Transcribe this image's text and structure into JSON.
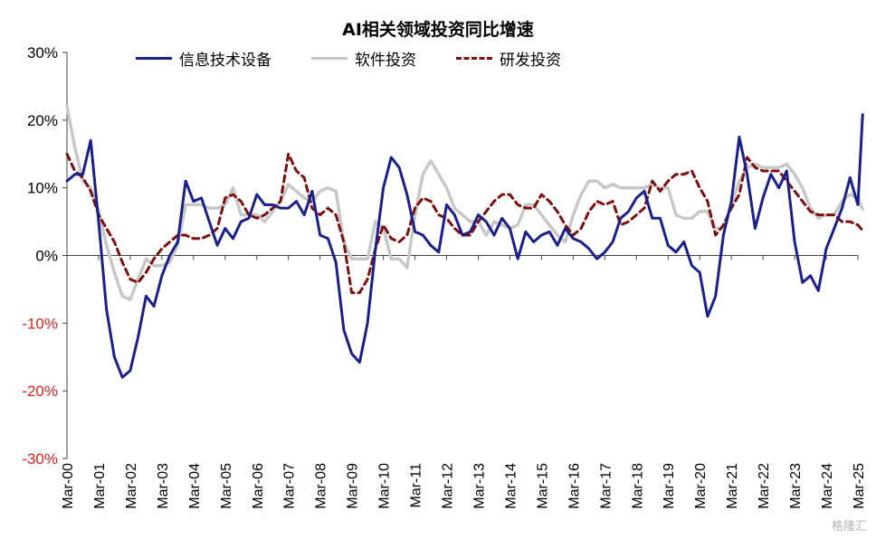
{
  "colors": {
    "series_info": "#1a1f8c",
    "series_software": "#c8c8c8",
    "series_rd": "#7b1010",
    "tick_negative": "#e02020",
    "tick_positive": "#000000",
    "axis": "#444444"
  },
  "watermark": "格隆汇",
  "chart_data": {
    "type": "line",
    "title": "AI相关领域投资同比增速",
    "ylim": [
      -30,
      30
    ],
    "yticks": [
      -30,
      -20,
      -10,
      0,
      10,
      20,
      30
    ],
    "ytick_labels": [
      "-30%",
      "-20%",
      "-10%",
      "0%",
      "10%",
      "20%",
      "30%"
    ],
    "xlim": [
      2000.0,
      2025.0
    ],
    "x_tick_labels": [
      "Mar-00",
      "Mar-01",
      "Mar-02",
      "Mar-03",
      "Mar-04",
      "Mar-05",
      "Mar-06",
      "Mar-07",
      "Mar-08",
      "Mar-09",
      "Mar-10",
      "Mar-11",
      "Mar-12",
      "Mar-13",
      "Mar-14",
      "Mar-15",
      "Mar-16",
      "Mar-17",
      "Mar-18",
      "Mar-19",
      "Mar-20",
      "Mar-21",
      "Mar-22",
      "Mar-23",
      "Mar-24",
      "Mar-25"
    ],
    "legend_position": "top",
    "series": [
      {
        "name": "信息技术设备",
        "style": "solid",
        "points": [
          [
            2000.0,
            11
          ],
          [
            2000.25,
            12
          ],
          [
            2000.5,
            12
          ],
          [
            2000.75,
            17
          ],
          [
            2001.0,
            5
          ],
          [
            2001.25,
            -8
          ],
          [
            2001.5,
            -15
          ],
          [
            2001.75,
            -18
          ],
          [
            2002.0,
            -17
          ],
          [
            2002.25,
            -12
          ],
          [
            2002.5,
            -6
          ],
          [
            2002.75,
            -7.5
          ],
          [
            2003.0,
            -3
          ],
          [
            2003.25,
            0
          ],
          [
            2003.5,
            2
          ],
          [
            2003.75,
            11
          ],
          [
            2004.0,
            8
          ],
          [
            2004.25,
            8.5
          ],
          [
            2004.5,
            5
          ],
          [
            2004.75,
            1.5
          ],
          [
            2005.0,
            4
          ],
          [
            2005.25,
            2.5
          ],
          [
            2005.5,
            5
          ],
          [
            2005.75,
            5.5
          ],
          [
            2006.0,
            9
          ],
          [
            2006.25,
            7.5
          ],
          [
            2006.5,
            7.5
          ],
          [
            2006.75,
            7
          ],
          [
            2007.0,
            7
          ],
          [
            2007.25,
            8
          ],
          [
            2007.5,
            6
          ],
          [
            2007.75,
            9.5
          ],
          [
            2008.0,
            3
          ],
          [
            2008.25,
            2.5
          ],
          [
            2008.5,
            -1
          ],
          [
            2008.75,
            -11
          ],
          [
            2009.0,
            -14.5
          ],
          [
            2009.25,
            -15.8
          ],
          [
            2009.5,
            -10
          ],
          [
            2009.75,
            1
          ],
          [
            2010.0,
            10
          ],
          [
            2010.25,
            14.5
          ],
          [
            2010.5,
            13
          ],
          [
            2010.75,
            9
          ],
          [
            2011.0,
            3.5
          ],
          [
            2011.25,
            3
          ],
          [
            2011.5,
            1.5
          ],
          [
            2011.75,
            0.5
          ],
          [
            2012.0,
            7.5
          ],
          [
            2012.25,
            6
          ],
          [
            2012.5,
            3
          ],
          [
            2012.75,
            3.5
          ],
          [
            2013.0,
            6
          ],
          [
            2013.25,
            5
          ],
          [
            2013.5,
            3
          ],
          [
            2013.75,
            5.5
          ],
          [
            2014.0,
            4
          ],
          [
            2014.25,
            -0.5
          ],
          [
            2014.5,
            3.5
          ],
          [
            2014.75,
            2
          ],
          [
            2015.0,
            3
          ],
          [
            2015.25,
            3.5
          ],
          [
            2015.5,
            1.5
          ],
          [
            2015.75,
            4
          ],
          [
            2016.0,
            2.5
          ],
          [
            2016.25,
            2
          ],
          [
            2016.5,
            1
          ],
          [
            2016.75,
            -0.5
          ],
          [
            2017.0,
            0.5
          ],
          [
            2017.25,
            2
          ],
          [
            2017.5,
            5.5
          ],
          [
            2017.75,
            6.5
          ],
          [
            2018.0,
            8.5
          ],
          [
            2018.25,
            9.5
          ],
          [
            2018.5,
            5.5
          ],
          [
            2018.75,
            5.5
          ],
          [
            2019.0,
            1.5
          ],
          [
            2019.25,
            0.5
          ],
          [
            2019.5,
            2
          ],
          [
            2019.75,
            -1.5
          ],
          [
            2020.0,
            -2.5
          ],
          [
            2020.25,
            -9
          ],
          [
            2020.5,
            -6
          ],
          [
            2020.75,
            3
          ],
          [
            2021.0,
            8
          ],
          [
            2021.25,
            17.5
          ],
          [
            2021.5,
            12
          ],
          [
            2021.75,
            4
          ],
          [
            2022.0,
            8.5
          ],
          [
            2022.25,
            12
          ],
          [
            2022.5,
            10
          ],
          [
            2022.75,
            12.5
          ],
          [
            2023.0,
            2
          ],
          [
            2023.25,
            -4
          ],
          [
            2023.5,
            -3
          ],
          [
            2023.75,
            -5.2
          ],
          [
            2024.0,
            1
          ],
          [
            2024.25,
            4
          ],
          [
            2024.5,
            7
          ],
          [
            2024.75,
            11.5
          ],
          [
            2025.0,
            7.5
          ],
          [
            2025.15,
            20.8
          ]
        ]
      },
      {
        "name": "软件投资",
        "style": "solid",
        "points": [
          [
            2000.0,
            22
          ],
          [
            2000.25,
            16
          ],
          [
            2000.5,
            11
          ],
          [
            2000.75,
            10
          ],
          [
            2001.0,
            6.5
          ],
          [
            2001.25,
            1.5
          ],
          [
            2001.5,
            -2.5
          ],
          [
            2001.75,
            -6
          ],
          [
            2002.0,
            -6.5
          ],
          [
            2002.25,
            -3.5
          ],
          [
            2002.5,
            -0.5
          ],
          [
            2002.75,
            -1.5
          ],
          [
            2003.0,
            -1.5
          ],
          [
            2003.25,
            -1
          ],
          [
            2003.5,
            1.5
          ],
          [
            2003.75,
            7.5
          ],
          [
            2004.0,
            7.5
          ],
          [
            2004.25,
            7.5
          ],
          [
            2004.5,
            7
          ],
          [
            2004.75,
            7
          ],
          [
            2005.0,
            7.5
          ],
          [
            2005.25,
            10
          ],
          [
            2005.5,
            6
          ],
          [
            2005.75,
            6
          ],
          [
            2006.0,
            6
          ],
          [
            2006.25,
            5
          ],
          [
            2006.5,
            6.5
          ],
          [
            2006.75,
            8
          ],
          [
            2007.0,
            10.5
          ],
          [
            2007.25,
            9.5
          ],
          [
            2007.5,
            8.5
          ],
          [
            2007.75,
            8
          ],
          [
            2008.0,
            9.5
          ],
          [
            2008.25,
            10
          ],
          [
            2008.5,
            9.5
          ],
          [
            2008.75,
            2
          ],
          [
            2009.0,
            -0.5
          ],
          [
            2009.25,
            -0.5
          ],
          [
            2009.5,
            -0.5
          ],
          [
            2009.75,
            5
          ],
          [
            2010.0,
            4
          ],
          [
            2010.25,
            -0.5
          ],
          [
            2010.5,
            -0.5
          ],
          [
            2010.75,
            -1.8
          ],
          [
            2011.0,
            6
          ],
          [
            2011.25,
            12
          ],
          [
            2011.5,
            14
          ],
          [
            2011.75,
            12
          ],
          [
            2012.0,
            10
          ],
          [
            2012.25,
            7
          ],
          [
            2012.5,
            6
          ],
          [
            2012.75,
            5
          ],
          [
            2013.0,
            5
          ],
          [
            2013.25,
            3
          ],
          [
            2013.5,
            5
          ],
          [
            2013.75,
            4.5
          ],
          [
            2014.0,
            4
          ],
          [
            2014.25,
            4.5
          ],
          [
            2014.5,
            7.5
          ],
          [
            2014.75,
            7.5
          ],
          [
            2015.0,
            6
          ],
          [
            2015.25,
            4.5
          ],
          [
            2015.5,
            3
          ],
          [
            2015.75,
            2
          ],
          [
            2016.0,
            6
          ],
          [
            2016.25,
            9
          ],
          [
            2016.5,
            11
          ],
          [
            2016.75,
            11
          ],
          [
            2017.0,
            10
          ],
          [
            2017.25,
            10.5
          ],
          [
            2017.5,
            10
          ],
          [
            2017.75,
            10
          ],
          [
            2018.0,
            10
          ],
          [
            2018.25,
            10
          ],
          [
            2018.5,
            10.5
          ],
          [
            2018.75,
            10
          ],
          [
            2019.0,
            10
          ],
          [
            2019.25,
            6
          ],
          [
            2019.5,
            5.5
          ],
          [
            2019.75,
            5.5
          ],
          [
            2020.0,
            6.5
          ],
          [
            2020.25,
            6.5
          ],
          [
            2020.5,
            4
          ],
          [
            2020.75,
            4
          ],
          [
            2021.0,
            7.5
          ],
          [
            2021.25,
            11
          ],
          [
            2021.5,
            13
          ],
          [
            2021.75,
            13.5
          ],
          [
            2022.0,
            13
          ],
          [
            2022.25,
            13
          ],
          [
            2022.5,
            13
          ],
          [
            2022.75,
            13.5
          ],
          [
            2023.0,
            12
          ],
          [
            2023.25,
            10
          ],
          [
            2023.5,
            7
          ],
          [
            2023.75,
            5.5
          ],
          [
            2024.0,
            6
          ],
          [
            2024.25,
            6
          ],
          [
            2024.5,
            8
          ],
          [
            2024.75,
            9
          ],
          [
            2025.0,
            8.5
          ],
          [
            2025.15,
            6.8
          ]
        ]
      },
      {
        "name": "研发投资",
        "style": "dashed",
        "points": [
          [
            2000.0,
            15
          ],
          [
            2000.25,
            12.5
          ],
          [
            2000.5,
            11.5
          ],
          [
            2000.75,
            9.5
          ],
          [
            2001.0,
            6
          ],
          [
            2001.25,
            4
          ],
          [
            2001.5,
            2
          ],
          [
            2001.75,
            -1
          ],
          [
            2002.0,
            -3.5
          ],
          [
            2002.25,
            -4
          ],
          [
            2002.5,
            -2.5
          ],
          [
            2002.75,
            -0.5
          ],
          [
            2003.0,
            1
          ],
          [
            2003.25,
            2
          ],
          [
            2003.5,
            3
          ],
          [
            2003.75,
            3
          ],
          [
            2004.0,
            2.5
          ],
          [
            2004.25,
            2.5
          ],
          [
            2004.5,
            3
          ],
          [
            2004.75,
            4
          ],
          [
            2005.0,
            8.5
          ],
          [
            2005.25,
            9
          ],
          [
            2005.5,
            8
          ],
          [
            2005.75,
            6
          ],
          [
            2006.0,
            5.5
          ],
          [
            2006.25,
            6
          ],
          [
            2006.5,
            7
          ],
          [
            2006.75,
            8
          ],
          [
            2007.0,
            15
          ],
          [
            2007.25,
            12.5
          ],
          [
            2007.5,
            11.5
          ],
          [
            2007.75,
            7
          ],
          [
            2008.0,
            6
          ],
          [
            2008.25,
            7
          ],
          [
            2008.5,
            6
          ],
          [
            2008.75,
            2
          ],
          [
            2009.0,
            -5.5
          ],
          [
            2009.25,
            -5.5
          ],
          [
            2009.5,
            -3.5
          ],
          [
            2009.75,
            1
          ],
          [
            2010.0,
            4.5
          ],
          [
            2010.25,
            2.5
          ],
          [
            2010.5,
            2
          ],
          [
            2010.75,
            3
          ],
          [
            2011.0,
            7
          ],
          [
            2011.25,
            8.5
          ],
          [
            2011.5,
            8
          ],
          [
            2011.75,
            6
          ],
          [
            2012.0,
            5.5
          ],
          [
            2012.25,
            4
          ],
          [
            2012.5,
            3
          ],
          [
            2012.75,
            3
          ],
          [
            2013.0,
            5
          ],
          [
            2013.25,
            6.5
          ],
          [
            2013.5,
            8
          ],
          [
            2013.75,
            9
          ],
          [
            2014.0,
            9
          ],
          [
            2014.25,
            7.5
          ],
          [
            2014.5,
            7
          ],
          [
            2014.75,
            7
          ],
          [
            2015.0,
            9
          ],
          [
            2015.25,
            8
          ],
          [
            2015.5,
            6.5
          ],
          [
            2015.75,
            4.5
          ],
          [
            2016.0,
            3
          ],
          [
            2016.25,
            4
          ],
          [
            2016.5,
            6.5
          ],
          [
            2016.75,
            8
          ],
          [
            2017.0,
            7.5
          ],
          [
            2017.25,
            8
          ],
          [
            2017.5,
            4.5
          ],
          [
            2017.75,
            5
          ],
          [
            2018.0,
            6
          ],
          [
            2018.25,
            7
          ],
          [
            2018.5,
            11
          ],
          [
            2018.75,
            9.5
          ],
          [
            2019.0,
            11
          ],
          [
            2019.25,
            12
          ],
          [
            2019.5,
            12
          ],
          [
            2019.75,
            12.5
          ],
          [
            2020.0,
            10
          ],
          [
            2020.25,
            8
          ],
          [
            2020.5,
            3
          ],
          [
            2020.75,
            4.5
          ],
          [
            2021.0,
            7
          ],
          [
            2021.25,
            9
          ],
          [
            2021.5,
            14.5
          ],
          [
            2021.75,
            13
          ],
          [
            2022.0,
            12.5
          ],
          [
            2022.25,
            12.5
          ],
          [
            2022.5,
            12.5
          ],
          [
            2022.75,
            11
          ],
          [
            2023.0,
            9.5
          ],
          [
            2023.25,
            8
          ],
          [
            2023.5,
            6.5
          ],
          [
            2023.75,
            6
          ],
          [
            2024.0,
            6
          ],
          [
            2024.25,
            6
          ],
          [
            2024.5,
            5
          ],
          [
            2024.75,
            5
          ],
          [
            2025.0,
            4.5
          ],
          [
            2025.15,
            3.7
          ]
        ]
      }
    ]
  }
}
